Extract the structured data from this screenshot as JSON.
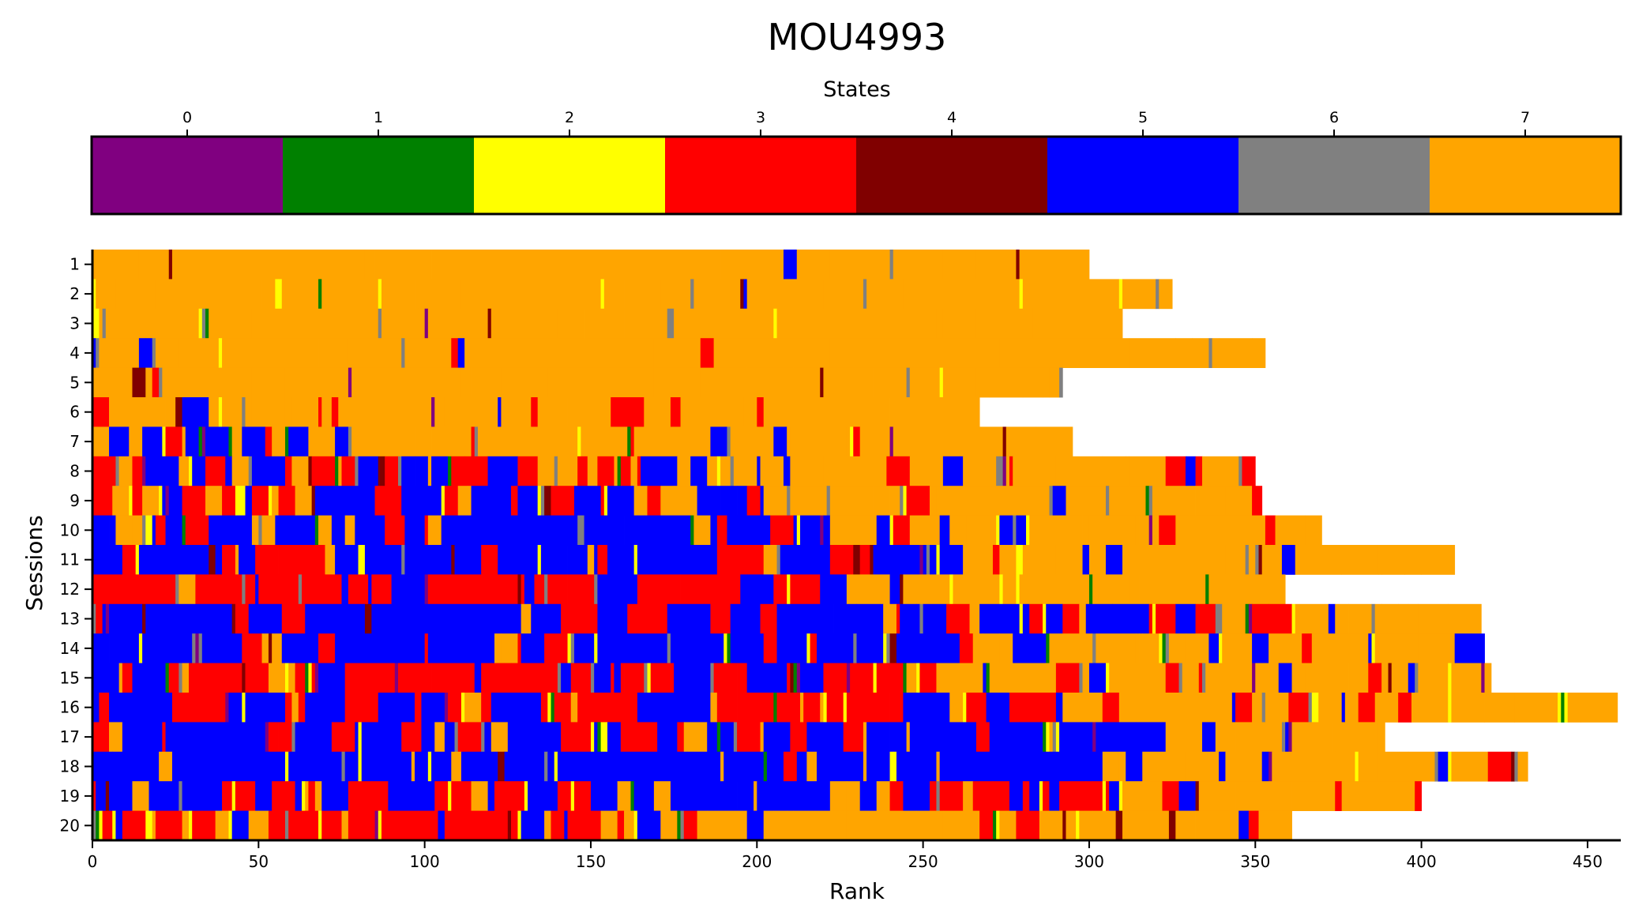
{
  "chart_data": {
    "type": "heatmap",
    "title": "MOU4993",
    "xlabel": "Rank",
    "ylabel": "Sessions",
    "xlim": [
      0,
      460
    ],
    "x_ticks": [
      "0",
      "50",
      "100",
      "150",
      "200",
      "250",
      "300",
      "350",
      "400",
      "450"
    ],
    "x_tick_values": [
      0,
      50,
      100,
      150,
      200,
      250,
      300,
      350,
      400,
      450
    ],
    "y_categories": [
      "1",
      "2",
      "3",
      "4",
      "5",
      "6",
      "7",
      "8",
      "9",
      "10",
      "11",
      "12",
      "13",
      "14",
      "15",
      "16",
      "17",
      "18",
      "19",
      "20"
    ],
    "grid": false,
    "colorbar": {
      "label": "States",
      "placement": "top",
      "ticks": [
        "0",
        "1",
        "2",
        "3",
        "4",
        "5",
        "6",
        "7"
      ],
      "colors": [
        "#800080",
        "#008000",
        "#ffff00",
        "#ff0000",
        "#800000",
        "#0000ff",
        "#808080",
        "#ffa500"
      ]
    },
    "session_lengths": [
      300,
      325,
      310,
      353,
      292,
      267,
      295,
      350,
      352,
      370,
      410,
      359,
      418,
      419,
      421,
      459,
      389,
      432,
      400,
      361
    ],
    "session_state_mix": [
      {
        "session": "1",
        "blue": 0.02,
        "red": 0.01,
        "orange_start": 0
      },
      {
        "session": "2",
        "blue": 0.05,
        "red": 0.02,
        "orange_start": 0
      },
      {
        "session": "3",
        "blue": 0.04,
        "red": 0.05,
        "orange_start": 0
      },
      {
        "session": "4",
        "blue": 0.08,
        "red": 0.08,
        "orange_start": 0
      },
      {
        "session": "5",
        "blue": 0.12,
        "red": 0.15,
        "orange_start": 0
      },
      {
        "session": "6",
        "blue": 0.18,
        "red": 0.15,
        "orange_start": 60
      },
      {
        "session": "7",
        "blue": 0.25,
        "red": 0.15,
        "orange_start": 80
      },
      {
        "session": "8",
        "blue": 0.22,
        "red": 0.28,
        "orange_start": 170
      },
      {
        "session": "9",
        "blue": 0.35,
        "red": 0.25,
        "orange_start": 200
      },
      {
        "session": "10",
        "blue": 0.55,
        "red": 0.12,
        "orange_start": 220
      },
      {
        "session": "11",
        "blue": 0.4,
        "red": 0.3,
        "orange_start": 260
      },
      {
        "session": "12",
        "blue": 0.25,
        "red": 0.45,
        "orange_start": 220
      },
      {
        "session": "13",
        "blue": 0.5,
        "red": 0.2,
        "orange_start": 340
      },
      {
        "session": "14",
        "blue": 0.55,
        "red": 0.15,
        "orange_start": 280
      },
      {
        "session": "15",
        "blue": 0.2,
        "red": 0.5,
        "orange_start": 250
      },
      {
        "session": "16",
        "blue": 0.25,
        "red": 0.45,
        "orange_start": 290
      },
      {
        "session": "17",
        "blue": 0.45,
        "red": 0.2,
        "orange_start": 315
      },
      {
        "session": "18",
        "blue": 0.55,
        "red": 0.1,
        "orange_start": 300
      },
      {
        "session": "19",
        "blue": 0.3,
        "red": 0.4,
        "orange_start": 295
      },
      {
        "session": "20",
        "blue": 0.2,
        "red": 0.4,
        "orange_start": 180
      }
    ]
  }
}
